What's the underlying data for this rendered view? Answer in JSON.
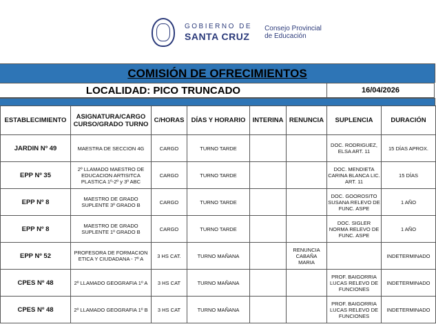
{
  "header": {
    "gobierno_line1": "GOBIERNO DE",
    "gobierno_line2": "SANTA CRUZ",
    "consejo_line1": "Consejo Provincial",
    "consejo_line2": "de Educación"
  },
  "title": "COMISIÓN DE OFRECIMIENTOS",
  "localidad": "LOCALIDAD: PICO TRUNCADO",
  "date": "16/04/2026",
  "colors": {
    "band": "#2e75b6",
    "logo": "#2b3a7a"
  },
  "table": {
    "columns": [
      "ESTABLECIMIENTO",
      "ASIGNATURA/CARGO CURSO/GRADO TURNO",
      "C/HORAS",
      "DÍAS Y HORARIO",
      "INTERINA",
      "RENUNCIA",
      "SUPLENCIA",
      "DURACIÓN"
    ],
    "rows": [
      [
        "JARDIN Nº 49",
        "MAESTRA DE SECCION 4G",
        "CARGO",
        "TURNO TARDE",
        "",
        "",
        "DOC. RODRIGUEZ, ELSA ART. 11",
        "15 DÍAS APROX."
      ],
      [
        "EPP Nº 35",
        "2º LLAMADO MAESTRO DE EDUCACION ARTISITCA PLASTICA 1º-2º y 3º ABC",
        "CARGO",
        "TURNO TARDE",
        "",
        "",
        "DOC. MENDIETA CARINA BLANCA LIC. ART. 11",
        "15 DÍAS"
      ],
      [
        "EPP Nº 8",
        "MAESTRO DE GRADO SUPLENTE 3º GRADO B",
        "CARGO",
        "TURNO TARDE",
        "",
        "",
        "DOC. GOOROSITO SUSANA RELEVO DE FUNC. ASPE",
        "1 AÑO"
      ],
      [
        "EPP Nº 8",
        "MAESTRO DE GRADO SUPLENTE 1º GRADO B",
        "CARGO",
        "TURNO TARDE",
        "",
        "",
        "DOC. SIGLER NORMA RELEVO DE FUNC. ASPE",
        "1 AÑO"
      ],
      [
        "EPP Nº 52",
        "PROFESORA DE FORMACION ETICA Y CIUDADANA - 7º A",
        "3 HS CAT.",
        "TURNO MAÑANA",
        "",
        "RENUNCIA CABAÑA MARIA",
        "",
        "INDETERMINADO"
      ],
      [
        "CPES Nº 48",
        "2º LLAMADO GEOGRAFIA 1º A",
        "3 HS CAT",
        "TURNO MAÑANA",
        "",
        "",
        "PROF. BAIGORRIA LUCAS RELEVO DE FUNCIONES",
        "INDETERMINADO"
      ],
      [
        "CPES Nº 48",
        "2º LLAMADO GEOGRAFIA 1º B",
        "3 HS CAT",
        "TURNO MAÑANA",
        "",
        "",
        "PROF. BAIGORRIA LUCAS RELEVO DE FUNCIONES",
        "INDETERMINADO"
      ]
    ]
  }
}
